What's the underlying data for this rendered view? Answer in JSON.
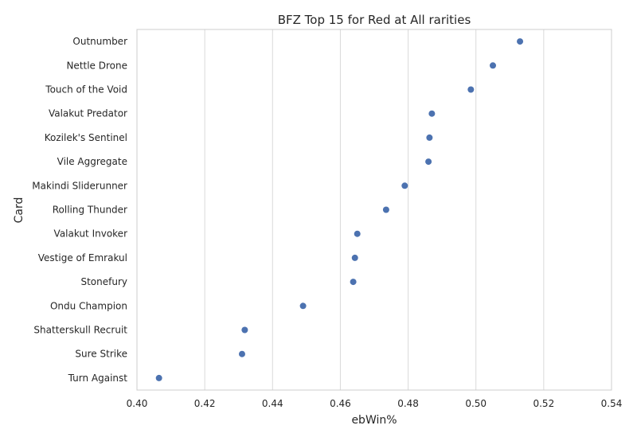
{
  "chart_data": {
    "type": "scatter",
    "title": "BFZ Top 15 for Red at All rarities",
    "xlabel": "ebWin%",
    "ylabel": "Card",
    "xlim": [
      0.4,
      0.54
    ],
    "xticks": [
      "0.40",
      "0.42",
      "0.44",
      "0.46",
      "0.48",
      "0.50",
      "0.52",
      "0.54"
    ],
    "grid": "vertical",
    "categories": [
      "Outnumber",
      "Nettle Drone",
      "Touch of the Void",
      "Valakut Predator",
      "Kozilek's Sentinel",
      "Vile Aggregate",
      "Makindi Sliderunner",
      "Rolling Thunder",
      "Valakut Invoker",
      "Vestige of Emrakul",
      "Stonefury",
      "Ondu Champion",
      "Shatterskull Recruit",
      "Sure Strike",
      "Turn Against"
    ],
    "values": [
      0.513,
      0.505,
      0.4985,
      0.487,
      0.4863,
      0.486,
      0.479,
      0.4735,
      0.465,
      0.4643,
      0.4638,
      0.449,
      0.4318,
      0.431,
      0.4065
    ],
    "point_color": "#4c72b0"
  }
}
